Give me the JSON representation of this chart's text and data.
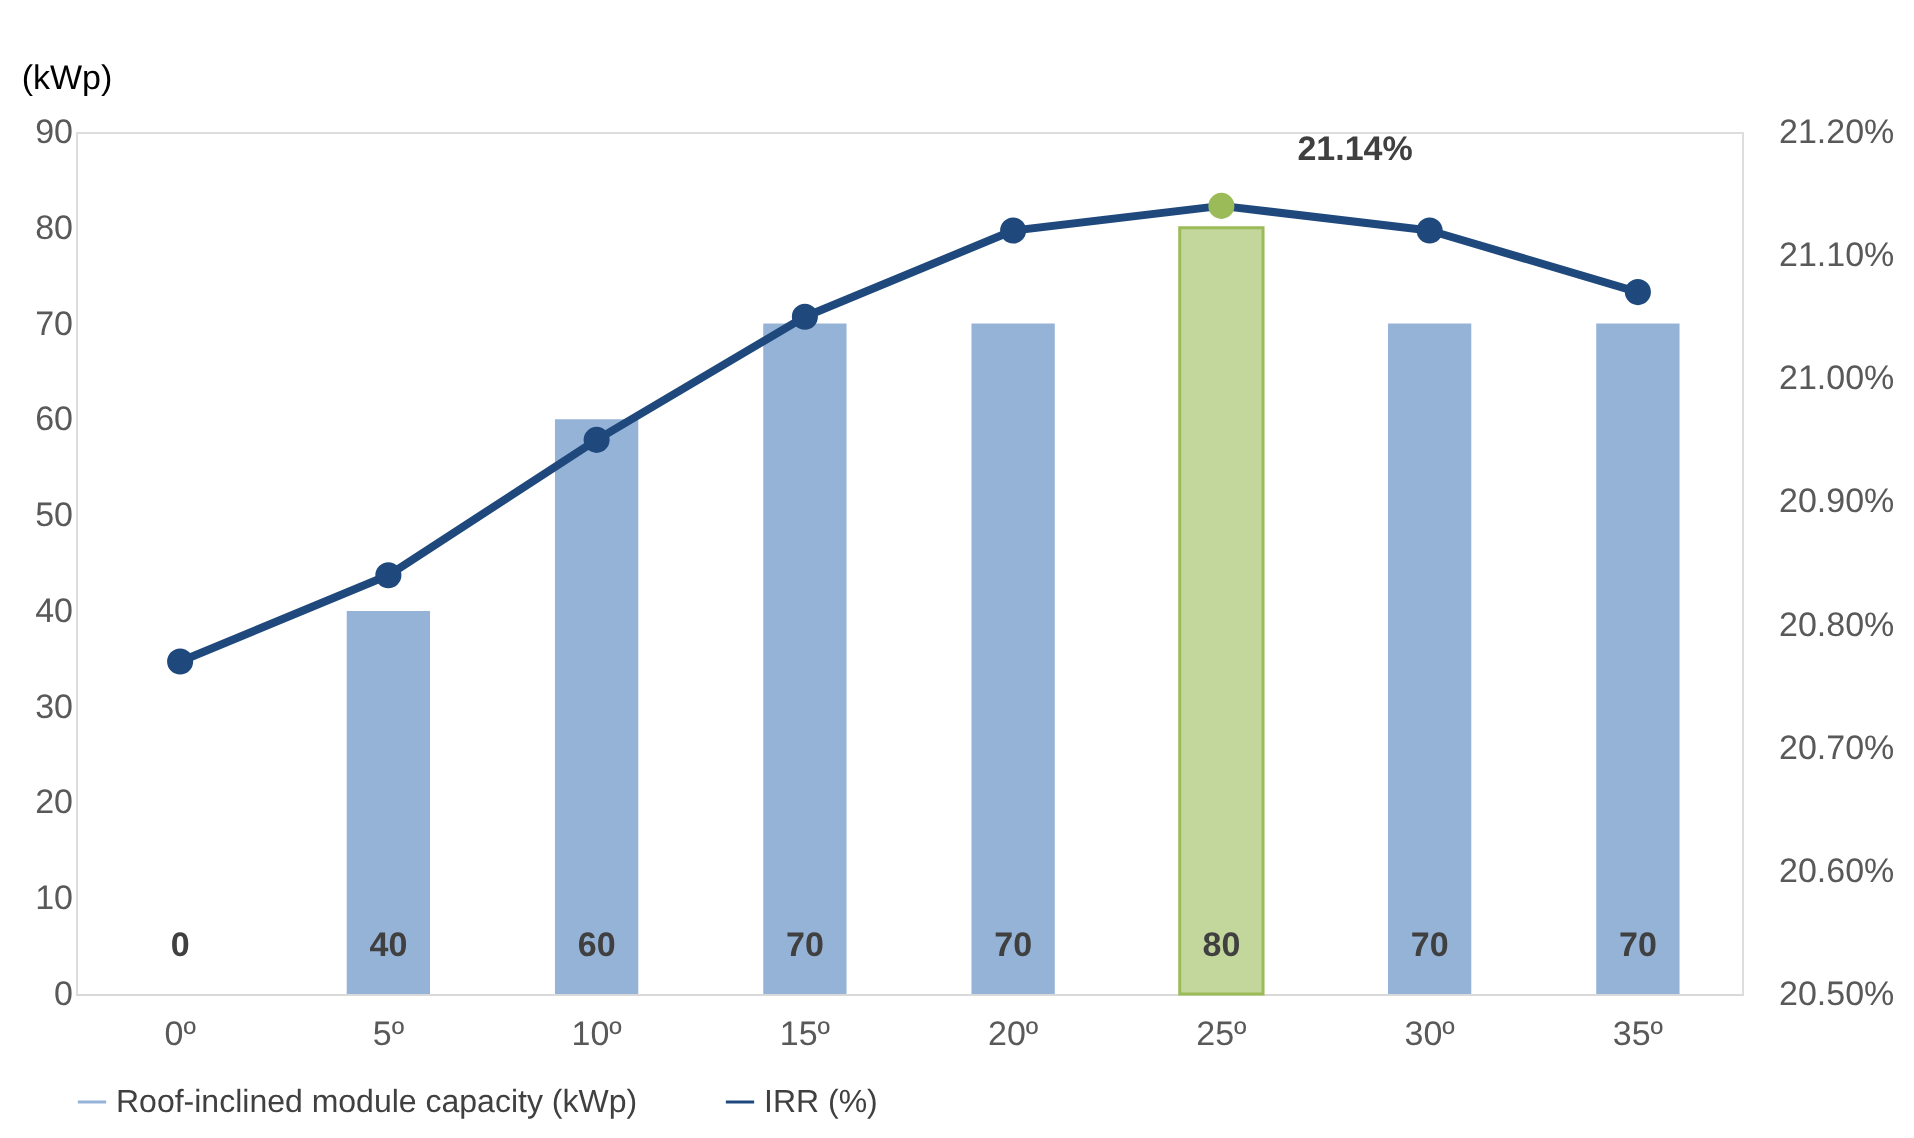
{
  "chart_data": {
    "type": "bar",
    "categories": [
      "0º",
      "5º",
      "10º",
      "15º",
      "20º",
      "25º",
      "30º",
      "35º"
    ],
    "ylabel": "(kWp)",
    "ylim": [
      0,
      90
    ],
    "yticks": [
      0,
      10,
      20,
      30,
      40,
      50,
      60,
      70,
      80,
      90
    ],
    "y2lim": [
      20.5,
      21.2
    ],
    "y2ticks": [
      {
        "value": 20.5,
        "label": "20.50%"
      },
      {
        "value": 20.6,
        "label": "20.60%"
      },
      {
        "value": 20.7,
        "label": "20.70%"
      },
      {
        "value": 20.8,
        "label": "20.80%"
      },
      {
        "value": 20.9,
        "label": "20.90%"
      },
      {
        "value": 21.0,
        "label": "21.00%"
      },
      {
        "value": 21.1,
        "label": "21.10%"
      },
      {
        "value": 21.2,
        "label": "21.20%"
      }
    ],
    "series": [
      {
        "name": "Roof-inclined module capacity (kWp)",
        "color": "#95b3d7",
        "colors": [
          "#95b3d7",
          "#95b3d7",
          "#95b3d7",
          "#95b3d7",
          "#95b3d7",
          "#c3d69b",
          "#95b3d7",
          "#95b3d7"
        ],
        "values": [
          0,
          40,
          60,
          70,
          70,
          80,
          70,
          70
        ]
      },
      {
        "name": "IRR (%)",
        "type": "line",
        "axis": "y2",
        "color": "#1f497d",
        "colors": [
          "#1f497d",
          "#1f497d",
          "#1f497d",
          "#1f497d",
          "#1f497d",
          "#9bbb59",
          "#1f497d",
          "#1f497d"
        ],
        "marker": "circle",
        "values": [
          20.77,
          20.84,
          20.95,
          21.05,
          21.12,
          21.14,
          21.12,
          21.07
        ],
        "value_labels": [
          null,
          null,
          null,
          null,
          null,
          "21.14%",
          null,
          null
        ]
      }
    ],
    "data_labels": true,
    "legend": "bottom",
    "grid": false
  }
}
